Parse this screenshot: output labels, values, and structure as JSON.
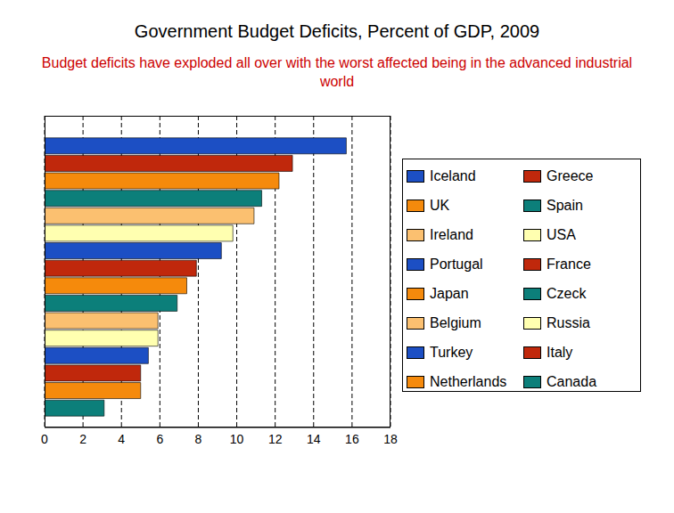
{
  "chart_data": {
    "type": "bar",
    "orientation": "horizontal",
    "title": "Government Budget Deficits, Percent of GDP, 2009",
    "subtitle": "Budget deficits have exploded all over with the worst affected being in the advanced industrial world",
    "categories": [
      "Iceland",
      "Greece",
      "UK",
      "Spain",
      "Ireland",
      "USA",
      "Portugal",
      "France",
      "Japan",
      "Czeck",
      "Belgium",
      "Russia",
      "Turkey",
      "Italy",
      "Netherlands",
      "Canada"
    ],
    "values": [
      15.7,
      12.9,
      12.2,
      11.3,
      10.9,
      9.8,
      9.2,
      7.9,
      7.4,
      6.9,
      5.9,
      5.9,
      5.4,
      5.0,
      5.0,
      3.1
    ],
    "colors": [
      "#1c4fc4",
      "#c0280c",
      "#f58a0c",
      "#0c7f7a",
      "#fbc070",
      "#ffffb0",
      "#1c4fc4",
      "#c0280c",
      "#f58a0c",
      "#0c7f7a",
      "#fbc070",
      "#ffffb0",
      "#1c4fc4",
      "#c0280c",
      "#f58a0c",
      "#0c7f7a"
    ],
    "xlim": [
      0,
      18
    ],
    "xticks": [
      0,
      2,
      4,
      6,
      8,
      10,
      12,
      14,
      16,
      18
    ],
    "grid": true,
    "legend": "right"
  }
}
